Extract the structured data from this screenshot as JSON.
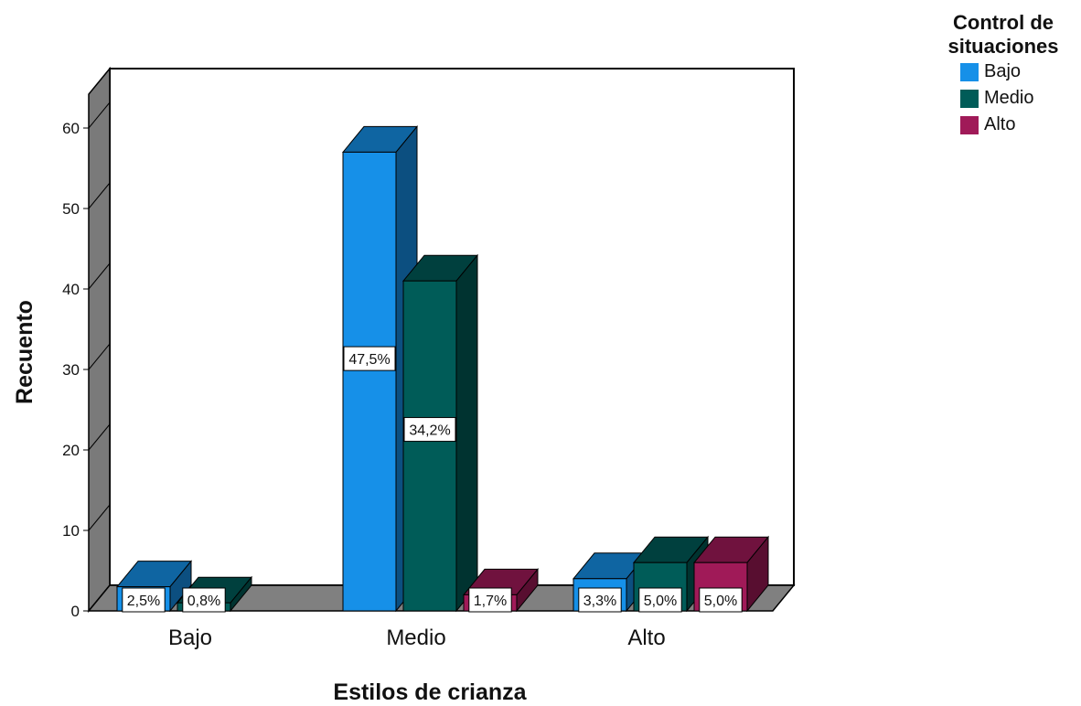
{
  "chart_data": {
    "type": "bar",
    "title": "",
    "xlabel": "Estilos de crianza",
    "ylabel": "Recuento",
    "categories": [
      "Bajo",
      "Medio",
      "Alto"
    ],
    "ylim": [
      0,
      60
    ],
    "yticks": [
      0,
      10,
      20,
      30,
      40,
      50,
      60
    ],
    "legend_title": "Control de situaciones",
    "legend_position": "top-right",
    "grid": false,
    "series": [
      {
        "name": "Bajo",
        "color": "#1690e8",
        "values": [
          3,
          57,
          4
        ],
        "labels": [
          "2,5%",
          "47,5%",
          "3,3%"
        ]
      },
      {
        "name": "Medio",
        "color": "#005c58",
        "values": [
          1,
          41,
          6
        ],
        "labels": [
          "0,8%",
          "34,2%",
          "5,0%"
        ]
      },
      {
        "name": "Alto",
        "color": "#a01a58",
        "values": [
          0,
          2,
          6
        ],
        "labels": [
          "",
          "1,7%",
          "5,0%"
        ]
      }
    ]
  }
}
